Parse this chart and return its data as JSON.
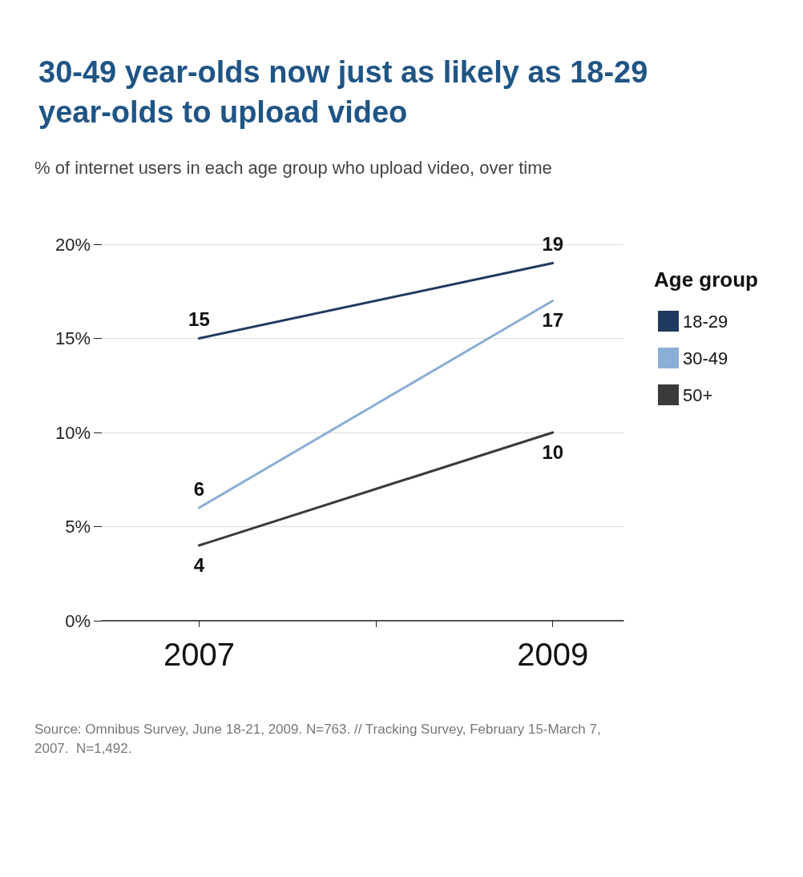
{
  "chart_data": {
    "type": "line",
    "title": "30-49 year-olds now just as likely as 18-29 year-olds to upload video",
    "subtitle": "% of internet users in each age group who upload video, over time",
    "x": [
      2007,
      2009
    ],
    "xlim": [
      2006.45,
      2009.4
    ],
    "xticks": [
      2007,
      {
        "value": 2008,
        "label": null
      },
      2009
    ],
    "ylim": [
      0,
      20
    ],
    "yticks": [
      {
        "value": 0,
        "label": "0%"
      },
      {
        "value": 5,
        "label": "5%"
      },
      {
        "value": 10,
        "label": "10%"
      },
      {
        "value": 15,
        "label": "15%"
      },
      {
        "value": 20,
        "label": "20%"
      }
    ],
    "series": [
      {
        "name": "18-29",
        "color": "#1f3a5f",
        "values": [
          15,
          19
        ]
      },
      {
        "name": "30-49",
        "color": "#8aaed6",
        "values": [
          6,
          17
        ]
      },
      {
        "name": "50+",
        "color": "#3a3a3a",
        "values": [
          4,
          10
        ]
      }
    ],
    "legend": "right",
    "legend_title": "Age group",
    "data_labels": true,
    "grid": "y",
    "marker": "none",
    "line_style": "solid",
    "annotations": [
      "Source: Omnibus Survey, June 18-21, 2009. N=763. // Tracking Survey, February 15-March 7, 2007.  N=1,492."
    ]
  }
}
